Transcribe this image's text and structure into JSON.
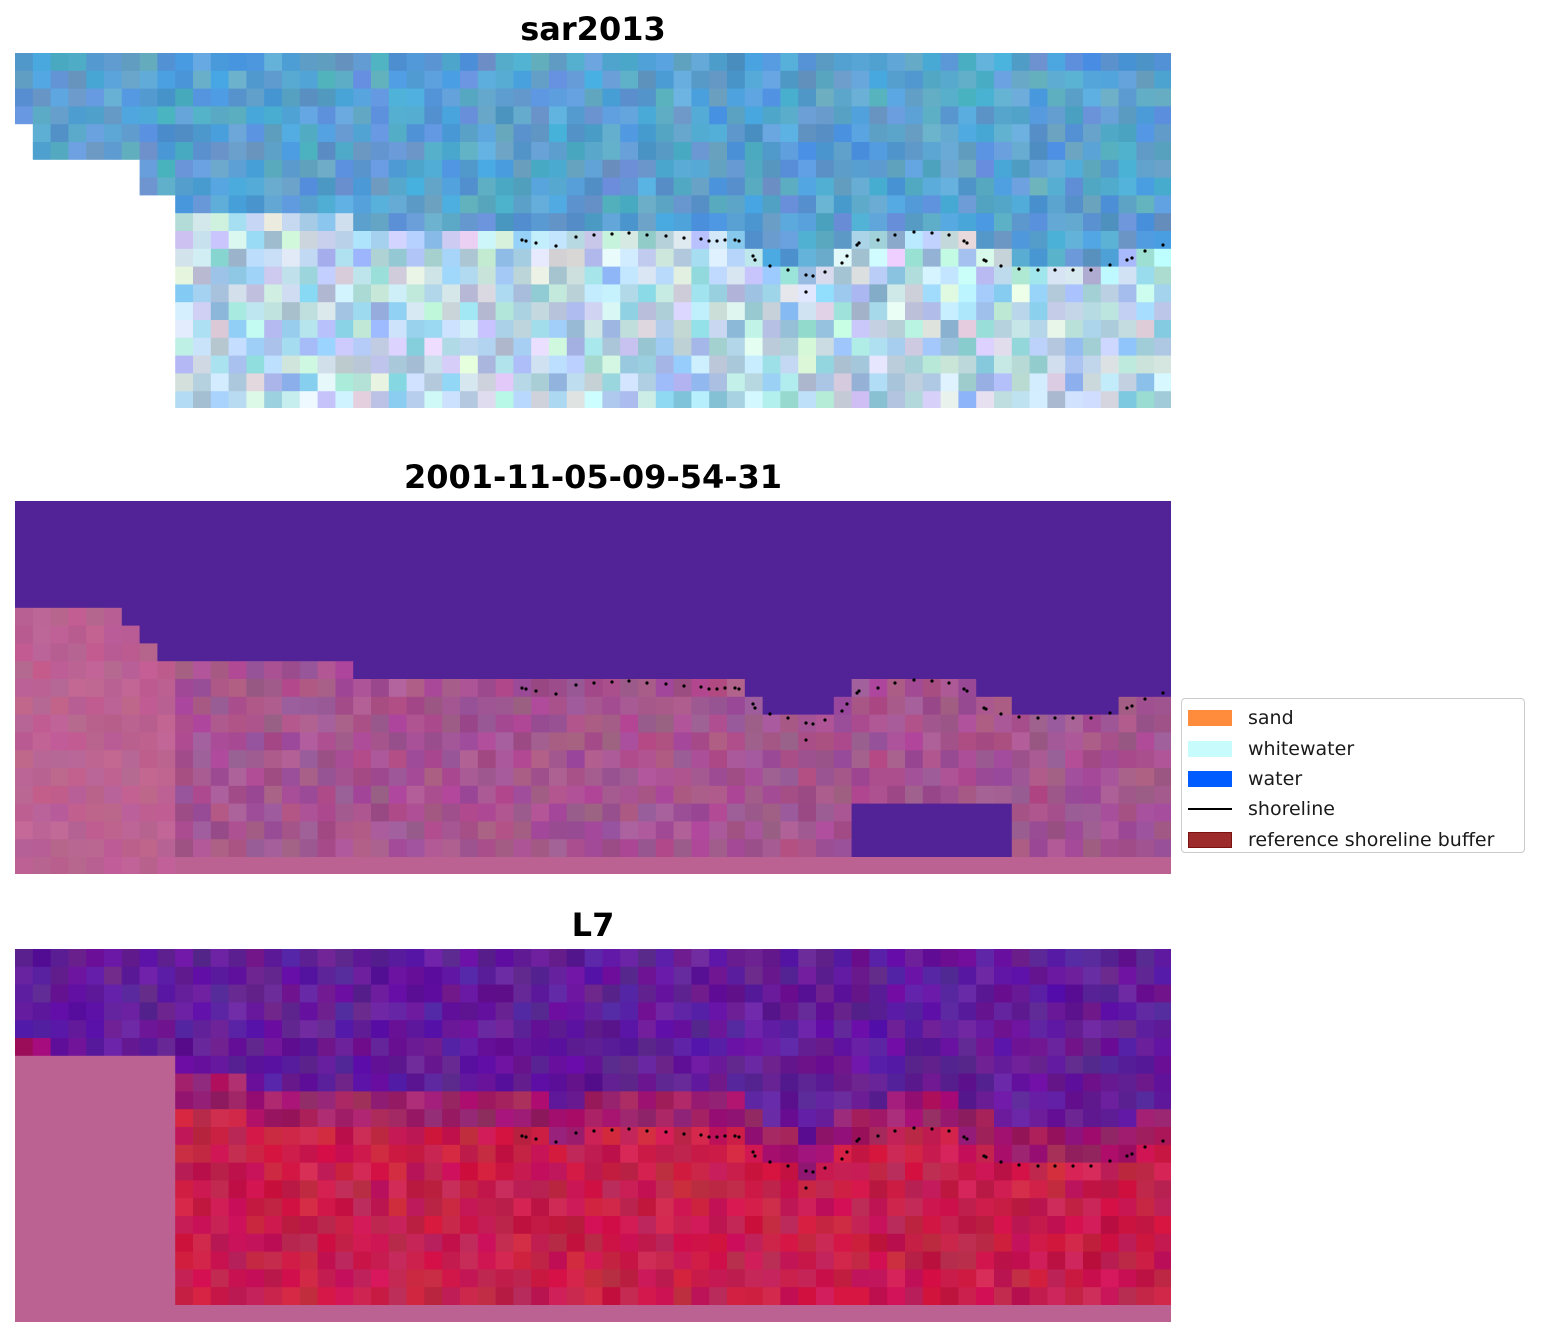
{
  "panels": [
    {
      "title": "sar2013",
      "style": "rgb"
    },
    {
      "title": "2001-11-05-09-54-31",
      "style": "classified"
    },
    {
      "title": "L7",
      "style": "index"
    }
  ],
  "legend": {
    "items": [
      {
        "label": "sand",
        "color": "#ff8c3c",
        "kind": "patch"
      },
      {
        "label": "whitewater",
        "color": "#c8fcfc",
        "kind": "patch"
      },
      {
        "label": "water",
        "color": "#005cff",
        "kind": "patch"
      },
      {
        "label": "shoreline",
        "color": "#000000",
        "kind": "line"
      },
      {
        "label": "reference shoreline buffer",
        "color": "#9e2b2b",
        "kind": "patch-bordered"
      }
    ]
  },
  "colors": {
    "rgb_water": "#5aa0d0",
    "rgb_surf": "#d6e6f2",
    "rgb_nodata": "#ffffff",
    "class_water": "#522297",
    "class_land": "#bc6292",
    "class_sand_mix": "#a55490",
    "index_water": "#621c9a",
    "index_land": "#c71e4c",
    "index_nodata": "#bc6292",
    "shoreline_dots": "#000000"
  }
}
